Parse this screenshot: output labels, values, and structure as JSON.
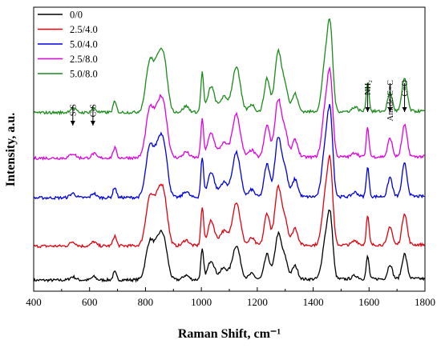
{
  "chart_data": {
    "type": "line",
    "xlabel": "Raman Shift, cm⁻¹",
    "ylabel": "Intensity, a.u.",
    "xlim": [
      400,
      1800
    ],
    "xticks": [
      400,
      600,
      800,
      1000,
      1200,
      1400,
      1600,
      1800
    ],
    "ylim": [
      0,
      1
    ],
    "yticks_shown": false,
    "grid": false,
    "legend_position": "top-left",
    "series": [
      {
        "name": "0/0",
        "color": "#000000",
        "offset": 0.0,
        "scale": 0.72
      },
      {
        "name": "2.5/4.0",
        "color": "#e3000f",
        "offset": 0.12,
        "scale": 0.92
      },
      {
        "name": "5.0/4.0",
        "color": "#0000e0",
        "offset": 0.29,
        "scale": 0.95
      },
      {
        "name": "2.5/8.0",
        "color": "#e000e0",
        "offset": 0.43,
        "scale": 0.92
      },
      {
        "name": "5.0/8.0",
        "color": "#1a8c1a",
        "offset": 0.59,
        "scale": 0.96
      }
    ],
    "peaks_cm": [
      {
        "x": 815,
        "h": 0.32,
        "w": 14
      },
      {
        "x": 850,
        "h": 0.36,
        "w": 16
      },
      {
        "x": 870,
        "h": 0.18,
        "w": 12
      },
      {
        "x": 1003,
        "h": 0.26,
        "w": 5
      },
      {
        "x": 1035,
        "h": 0.17,
        "w": 12
      },
      {
        "x": 1080,
        "h": 0.1,
        "w": 14
      },
      {
        "x": 1125,
        "h": 0.3,
        "w": 14
      },
      {
        "x": 1235,
        "h": 0.22,
        "w": 10
      },
      {
        "x": 1275,
        "h": 0.4,
        "w": 12
      },
      {
        "x": 1300,
        "h": 0.16,
        "w": 10
      },
      {
        "x": 1335,
        "h": 0.12,
        "w": 10
      },
      {
        "x": 1445,
        "h": 0.36,
        "w": 12
      },
      {
        "x": 1462,
        "h": 0.46,
        "w": 9
      },
      {
        "x": 1595,
        "h": 0.2,
        "w": 5
      },
      {
        "x": 1675,
        "h": 0.13,
        "w": 8
      },
      {
        "x": 1727,
        "h": 0.22,
        "w": 9
      },
      {
        "x": 690,
        "h": 0.07,
        "w": 6
      },
      {
        "x": 615,
        "h": 0.03,
        "w": 8
      },
      {
        "x": 540,
        "h": 0.03,
        "w": 10
      },
      {
        "x": 945,
        "h": 0.04,
        "w": 10
      },
      {
        "x": 1180,
        "h": 0.05,
        "w": 10
      },
      {
        "x": 1550,
        "h": 0.03,
        "w": 10
      }
    ],
    "annotations": [
      {
        "label": "S-S",
        "x": 540
      },
      {
        "label": "C-S",
        "x": 612
      },
      {
        "label": "NH₂",
        "x": 1595
      },
      {
        "label": "Amide/C=C",
        "x": 1675
      },
      {
        "label": "C=O",
        "x": 1727
      }
    ]
  }
}
